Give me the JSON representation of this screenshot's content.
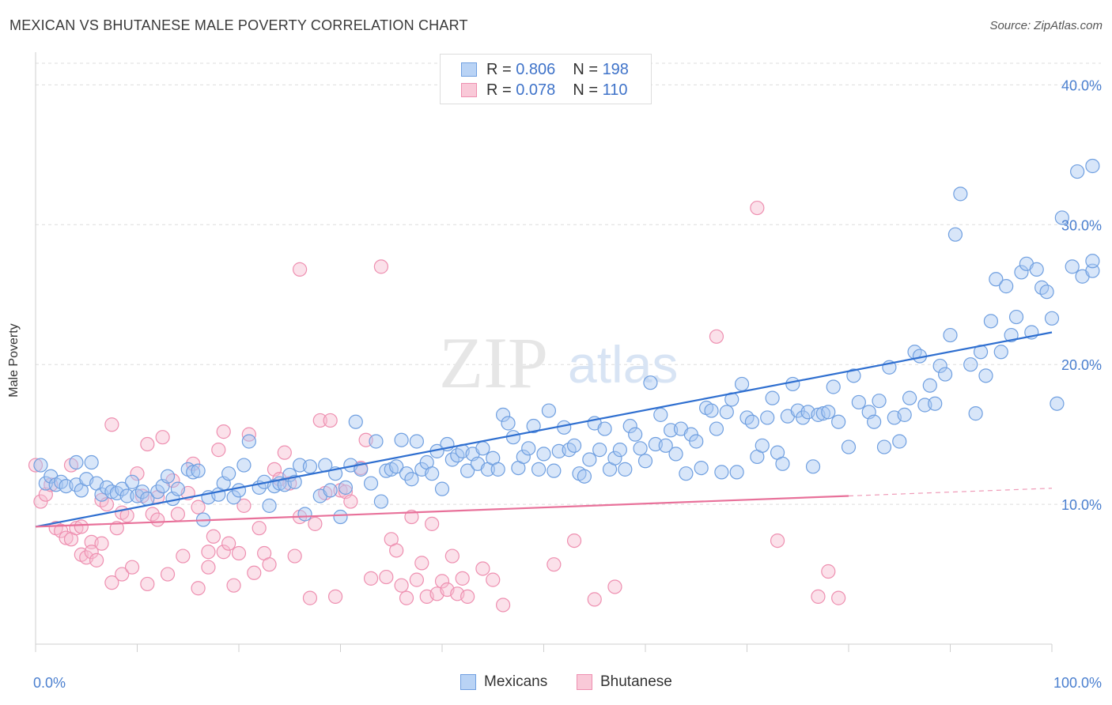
{
  "title": "MEXICAN VS BHUTANESE MALE POVERTY CORRELATION CHART",
  "source": "Source: ZipAtlas.com",
  "watermark": {
    "zip": "ZIP",
    "atlas": "atlas"
  },
  "legend": {
    "rows": [
      {
        "r_label": "R =",
        "r_value": "0.806",
        "n_label": "N =",
        "n_value": "198"
      },
      {
        "r_label": "R =",
        "r_value": "0.078",
        "n_label": "N =",
        "n_value": "110"
      }
    ]
  },
  "colors": {
    "mexicans_fill": "#a9c8f2",
    "mexicans_stroke": "#6f9fe0",
    "mexicans_line": "#2f6fd0",
    "bhutanese_fill": "#f7bdd0",
    "bhutanese_stroke": "#ee8fb0",
    "bhutanese_line": "#e8719a",
    "tick": "#4a7fcf",
    "grid": "#dddddd"
  },
  "chart_data": {
    "type": "scatter",
    "xlabel": "",
    "ylabel": "Male Poverty",
    "xlim": [
      0,
      100
    ],
    "ylim": [
      0,
      42
    ],
    "x_tick_labels": [
      "0.0%",
      "100.0%"
    ],
    "y_ticks": [
      10,
      20,
      30,
      40
    ],
    "y_tick_labels": [
      "10.0%",
      "20.0%",
      "30.0%",
      "40.0%"
    ],
    "grid": true,
    "legend_position": "top-center",
    "series": [
      {
        "name": "Mexicans",
        "trend": {
          "x": [
            0,
            100
          ],
          "y": [
            8.4,
            22.3
          ]
        },
        "points": [
          [
            0.5,
            12.8
          ],
          [
            1,
            11.5
          ],
          [
            1.5,
            12
          ],
          [
            2,
            11.4
          ],
          [
            2.5,
            11.6
          ],
          [
            3,
            11.3
          ],
          [
            4,
            11.4
          ],
          [
            4,
            13
          ],
          [
            4.5,
            11
          ],
          [
            5,
            11.8
          ],
          [
            5.5,
            13
          ],
          [
            6,
            11.5
          ],
          [
            6.5,
            10.7
          ],
          [
            7,
            11.2
          ],
          [
            7.5,
            10.9
          ],
          [
            8,
            10.8
          ],
          [
            8.5,
            11.1
          ],
          [
            9,
            10.6
          ],
          [
            9.5,
            11.6
          ],
          [
            10,
            10.6
          ],
          [
            10.5,
            10.9
          ],
          [
            11,
            10.4
          ],
          [
            12,
            10.9
          ],
          [
            12.5,
            11.3
          ],
          [
            13,
            12
          ],
          [
            13.5,
            10.4
          ],
          [
            14,
            11.1
          ],
          [
            15,
            12.5
          ],
          [
            15.5,
            12.3
          ],
          [
            16,
            12.4
          ],
          [
            16.5,
            8.9
          ],
          [
            17,
            10.5
          ],
          [
            18,
            10.7
          ],
          [
            18.5,
            11.5
          ],
          [
            19,
            12.2
          ],
          [
            19.5,
            10.5
          ],
          [
            20,
            11
          ],
          [
            20.5,
            12.8
          ],
          [
            21,
            14.5
          ],
          [
            22,
            11.2
          ],
          [
            22.5,
            11.6
          ],
          [
            23,
            9.9
          ],
          [
            23.5,
            11.3
          ],
          [
            24,
            11.5
          ],
          [
            24.5,
            11.4
          ],
          [
            25,
            12.1
          ],
          [
            25.5,
            11.6
          ],
          [
            26,
            12.8
          ],
          [
            26.5,
            9.3
          ],
          [
            27,
            12.7
          ],
          [
            28,
            10.6
          ],
          [
            28.5,
            12.8
          ],
          [
            29,
            11
          ],
          [
            29.5,
            12.2
          ],
          [
            30,
            9.1
          ],
          [
            30.5,
            11.2
          ],
          [
            31,
            12.8
          ],
          [
            31.5,
            15.9
          ],
          [
            32,
            12.5
          ],
          [
            33,
            11.5
          ],
          [
            33.5,
            14.5
          ],
          [
            34,
            10.2
          ],
          [
            34.5,
            12.4
          ],
          [
            35,
            12.5
          ],
          [
            35.5,
            12.7
          ],
          [
            36,
            14.6
          ],
          [
            36.5,
            12.2
          ],
          [
            37,
            11.8
          ],
          [
            37.5,
            14.5
          ],
          [
            38,
            12.5
          ],
          [
            38.5,
            13
          ],
          [
            39,
            12.2
          ],
          [
            39.5,
            13.8
          ],
          [
            40,
            11.1
          ],
          [
            40.5,
            14.3
          ],
          [
            41,
            13.2
          ],
          [
            41.5,
            13.5
          ],
          [
            42,
            13.8
          ],
          [
            42.5,
            12.4
          ],
          [
            43,
            13.6
          ],
          [
            43.5,
            12.9
          ],
          [
            44,
            14
          ],
          [
            44.5,
            12.5
          ],
          [
            45,
            13.3
          ],
          [
            45.5,
            12.5
          ],
          [
            46,
            16.4
          ],
          [
            46.5,
            15.8
          ],
          [
            47,
            14.8
          ],
          [
            47.5,
            12.6
          ],
          [
            48,
            13.4
          ],
          [
            48.5,
            14
          ],
          [
            49,
            15.6
          ],
          [
            49.5,
            12.5
          ],
          [
            50,
            13.6
          ],
          [
            50.5,
            16.7
          ],
          [
            51,
            12.4
          ],
          [
            51.5,
            13.8
          ],
          [
            52,
            15.5
          ],
          [
            52.5,
            13.9
          ],
          [
            53,
            14.2
          ],
          [
            53.5,
            12.2
          ],
          [
            54,
            12
          ],
          [
            54.5,
            13.2
          ],
          [
            55,
            15.8
          ],
          [
            55.5,
            13.9
          ],
          [
            56,
            15.4
          ],
          [
            56.5,
            12.5
          ],
          [
            57,
            13.3
          ],
          [
            57.5,
            13.9
          ],
          [
            58,
            12.5
          ],
          [
            58.5,
            15.6
          ],
          [
            59,
            15
          ],
          [
            59.5,
            14
          ],
          [
            60,
            13.1
          ],
          [
            60.5,
            18.7
          ],
          [
            61,
            14.3
          ],
          [
            61.5,
            16.4
          ],
          [
            62,
            14.2
          ],
          [
            62.5,
            15.3
          ],
          [
            63,
            13.6
          ],
          [
            63.5,
            15.4
          ],
          [
            64,
            12.2
          ],
          [
            64.5,
            15
          ],
          [
            65,
            14.5
          ],
          [
            65.5,
            12.6
          ],
          [
            66,
            16.9
          ],
          [
            66.5,
            16.7
          ],
          [
            67,
            15.4
          ],
          [
            67.5,
            12.3
          ],
          [
            68,
            16.6
          ],
          [
            68.5,
            17.5
          ],
          [
            69,
            12.3
          ],
          [
            69.5,
            18.6
          ],
          [
            70,
            16.2
          ],
          [
            70.5,
            15.9
          ],
          [
            71,
            13.4
          ],
          [
            71.5,
            14.2
          ],
          [
            72,
            16.2
          ],
          [
            72.5,
            17.6
          ],
          [
            73,
            13.7
          ],
          [
            73.5,
            12.9
          ],
          [
            74,
            16.3
          ],
          [
            74.5,
            18.6
          ],
          [
            75,
            16.7
          ],
          [
            75.5,
            16.2
          ],
          [
            76,
            16.6
          ],
          [
            76.5,
            12.7
          ],
          [
            77,
            16.4
          ],
          [
            77.5,
            16.5
          ],
          [
            78,
            16.6
          ],
          [
            78.5,
            18.4
          ],
          [
            79,
            15.9
          ],
          [
            80,
            14.1
          ],
          [
            80.5,
            19.2
          ],
          [
            81,
            17.3
          ],
          [
            82,
            16.6
          ],
          [
            82.5,
            15.9
          ],
          [
            83,
            17.4
          ],
          [
            83.5,
            14.1
          ],
          [
            84,
            19.8
          ],
          [
            84.5,
            16.2
          ],
          [
            85,
            14.5
          ],
          [
            85.5,
            16.4
          ],
          [
            86,
            17.6
          ],
          [
            86.5,
            20.9
          ],
          [
            87,
            20.6
          ],
          [
            87.5,
            17.1
          ],
          [
            88,
            18.5
          ],
          [
            88.5,
            17.2
          ],
          [
            89,
            19.9
          ],
          [
            89.5,
            19.3
          ],
          [
            90,
            22.1
          ],
          [
            90.5,
            29.3
          ],
          [
            91,
            32.2
          ],
          [
            92,
            20
          ],
          [
            92.5,
            16.5
          ],
          [
            93,
            20.9
          ],
          [
            93.5,
            19.2
          ],
          [
            94,
            23.1
          ],
          [
            94.5,
            26.1
          ],
          [
            95,
            20.9
          ],
          [
            95.5,
            25.6
          ],
          [
            96,
            22.1
          ],
          [
            96.5,
            23.4
          ],
          [
            97,
            26.6
          ],
          [
            97.5,
            27.2
          ],
          [
            98,
            22.3
          ],
          [
            98.5,
            26.8
          ],
          [
            99,
            25.5
          ],
          [
            99.5,
            25.2
          ],
          [
            100,
            23.3
          ],
          [
            100.5,
            17.2
          ],
          [
            101,
            30.5
          ],
          [
            102,
            27
          ],
          [
            102.5,
            33.8
          ],
          [
            103,
            26.3
          ],
          [
            104,
            26.7
          ],
          [
            104.5,
            27.4
          ],
          [
            105,
            34.2
          ]
        ]
      },
      {
        "name": "Bhutanese",
        "trend": {
          "x": [
            0,
            80
          ],
          "y": [
            8.4,
            10.6
          ]
        },
        "points": [
          [
            0,
            12.8
          ],
          [
            0.5,
            10.2
          ],
          [
            1,
            10.7
          ],
          [
            1.5,
            11.4
          ],
          [
            2,
            8.3
          ],
          [
            2.5,
            8.1
          ],
          [
            3,
            7.6
          ],
          [
            3.5,
            7.5
          ],
          [
            3.5,
            12.8
          ],
          [
            4,
            8.3
          ],
          [
            4.5,
            8.4
          ],
          [
            4.5,
            6.4
          ],
          [
            5,
            6.2
          ],
          [
            5.5,
            7.3
          ],
          [
            5.5,
            6.6
          ],
          [
            6,
            6
          ],
          [
            6.5,
            10.3
          ],
          [
            6.5,
            7.2
          ],
          [
            7,
            10
          ],
          [
            7.5,
            15.7
          ],
          [
            7.5,
            4.4
          ],
          [
            8,
            8.3
          ],
          [
            8.5,
            9.4
          ],
          [
            8.5,
            5
          ],
          [
            9,
            9.2
          ],
          [
            9.5,
            5.5
          ],
          [
            10,
            12.2
          ],
          [
            10.5,
            10.6
          ],
          [
            11,
            14.3
          ],
          [
            11,
            4.3
          ],
          [
            11.5,
            9.3
          ],
          [
            12,
            10.5
          ],
          [
            12,
            8.9
          ],
          [
            12.5,
            14.8
          ],
          [
            13,
            5
          ],
          [
            13.5,
            11.7
          ],
          [
            14,
            9.3
          ],
          [
            14.5,
            6.3
          ],
          [
            15,
            10.8
          ],
          [
            15.5,
            12.9
          ],
          [
            16,
            9.8
          ],
          [
            16,
            4
          ],
          [
            17,
            5.5
          ],
          [
            17,
            6.6
          ],
          [
            17.5,
            7.7
          ],
          [
            18,
            13.9
          ],
          [
            18.5,
            6.6
          ],
          [
            18.5,
            15.2
          ],
          [
            19,
            7.2
          ],
          [
            19.5,
            4.2
          ],
          [
            20,
            6.5
          ],
          [
            20.5,
            9.9
          ],
          [
            21,
            15
          ],
          [
            21.5,
            5.1
          ],
          [
            22,
            8.3
          ],
          [
            22.5,
            6.5
          ],
          [
            23,
            5.7
          ],
          [
            23.5,
            12.5
          ],
          [
            24,
            11.8
          ],
          [
            24.5,
            13.7
          ],
          [
            25,
            11.5
          ],
          [
            25.5,
            6.3
          ],
          [
            26,
            26.8
          ],
          [
            26,
            9.1
          ],
          [
            27,
            3.3
          ],
          [
            27.5,
            8.6
          ],
          [
            28,
            16
          ],
          [
            28.5,
            10.8
          ],
          [
            29,
            16
          ],
          [
            29.5,
            3.4
          ],
          [
            30,
            11
          ],
          [
            30.5,
            10.9
          ],
          [
            31,
            10.2
          ],
          [
            32,
            12.6
          ],
          [
            32.5,
            14.6
          ],
          [
            33,
            4.7
          ],
          [
            34,
            27
          ],
          [
            34.5,
            4.8
          ],
          [
            35,
            7.5
          ],
          [
            35.5,
            6.7
          ],
          [
            36,
            4.2
          ],
          [
            36.5,
            3.3
          ],
          [
            37,
            9.1
          ],
          [
            37.5,
            4.6
          ],
          [
            38,
            5.8
          ],
          [
            38.5,
            3.4
          ],
          [
            39,
            8.6
          ],
          [
            39.5,
            3.6
          ],
          [
            40,
            4.5
          ],
          [
            40.5,
            3.9
          ],
          [
            41,
            6.3
          ],
          [
            41.5,
            3.6
          ],
          [
            42,
            4.7
          ],
          [
            42.5,
            3.4
          ],
          [
            44,
            5.4
          ],
          [
            45,
            4.6
          ],
          [
            46,
            2.8
          ],
          [
            51,
            5.7
          ],
          [
            53,
            7.4
          ],
          [
            55,
            3.2
          ],
          [
            57,
            4.1
          ],
          [
            67,
            22
          ],
          [
            71,
            31.2
          ],
          [
            73,
            7.4
          ],
          [
            77,
            3.4
          ],
          [
            78,
            5.2
          ],
          [
            79,
            3.3
          ]
        ]
      }
    ]
  },
  "bottom_legend": [
    {
      "label": "Mexicans"
    },
    {
      "label": "Bhutanese"
    }
  ]
}
